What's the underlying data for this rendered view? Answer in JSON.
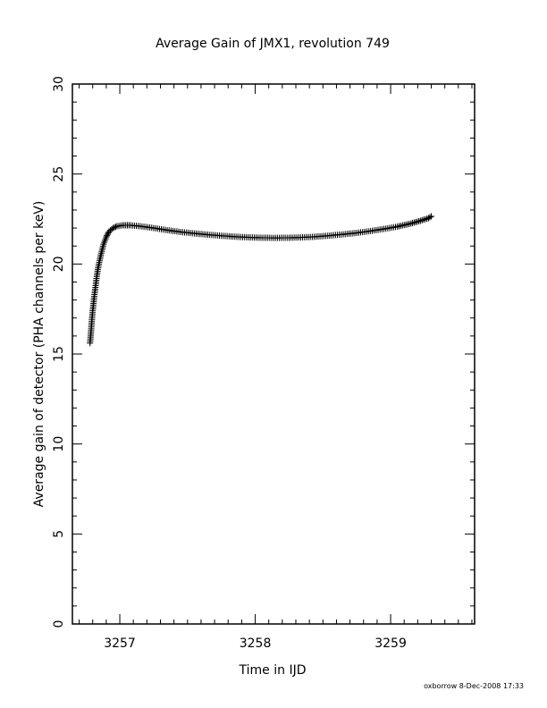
{
  "chart_data": {
    "type": "scatter",
    "title": "Average Gain of JMX1, revolution 749",
    "xlabel": "Time in IJD",
    "ylabel": "Average gain of detector (PHA channels per keV)",
    "xlim": [
      3256.65,
      3259.62
    ],
    "ylim": [
      0,
      30
    ],
    "xticks": [
      3257,
      3258,
      3259
    ],
    "yticks": [
      0,
      5,
      10,
      15,
      20,
      25,
      30
    ],
    "marker": "+",
    "color": "#000000",
    "grid": false,
    "points": [
      [
        3256.78,
        15.6
      ],
      [
        3256.785,
        16.0
      ],
      [
        3256.79,
        16.5
      ],
      [
        3256.795,
        17.0
      ],
      [
        3256.8,
        17.4
      ],
      [
        3256.81,
        18.1
      ],
      [
        3256.82,
        18.7
      ],
      [
        3256.83,
        19.3
      ],
      [
        3256.84,
        19.8
      ],
      [
        3256.86,
        20.5
      ],
      [
        3256.88,
        21.1
      ],
      [
        3256.9,
        21.5
      ],
      [
        3256.92,
        21.8
      ],
      [
        3256.95,
        22.0
      ],
      [
        3256.98,
        22.1
      ],
      [
        3257.02,
        22.15
      ],
      [
        3257.08,
        22.15
      ],
      [
        3257.15,
        22.1
      ],
      [
        3257.25,
        22.0
      ],
      [
        3257.35,
        21.88
      ],
      [
        3257.45,
        21.78
      ],
      [
        3257.55,
        21.7
      ],
      [
        3257.65,
        21.63
      ],
      [
        3257.75,
        21.57
      ],
      [
        3257.85,
        21.52
      ],
      [
        3257.95,
        21.48
      ],
      [
        3258.05,
        21.46
      ],
      [
        3258.15,
        21.45
      ],
      [
        3258.25,
        21.46
      ],
      [
        3258.35,
        21.48
      ],
      [
        3258.45,
        21.52
      ],
      [
        3258.55,
        21.58
      ],
      [
        3258.65,
        21.65
      ],
      [
        3258.75,
        21.73
      ],
      [
        3258.85,
        21.83
      ],
      [
        3258.95,
        21.95
      ],
      [
        3259.05,
        22.08
      ],
      [
        3259.15,
        22.25
      ],
      [
        3259.22,
        22.4
      ],
      [
        3259.28,
        22.55
      ],
      [
        3259.3,
        22.65
      ]
    ],
    "footer": "oxborrow  8-Dec-2008 17:33"
  }
}
